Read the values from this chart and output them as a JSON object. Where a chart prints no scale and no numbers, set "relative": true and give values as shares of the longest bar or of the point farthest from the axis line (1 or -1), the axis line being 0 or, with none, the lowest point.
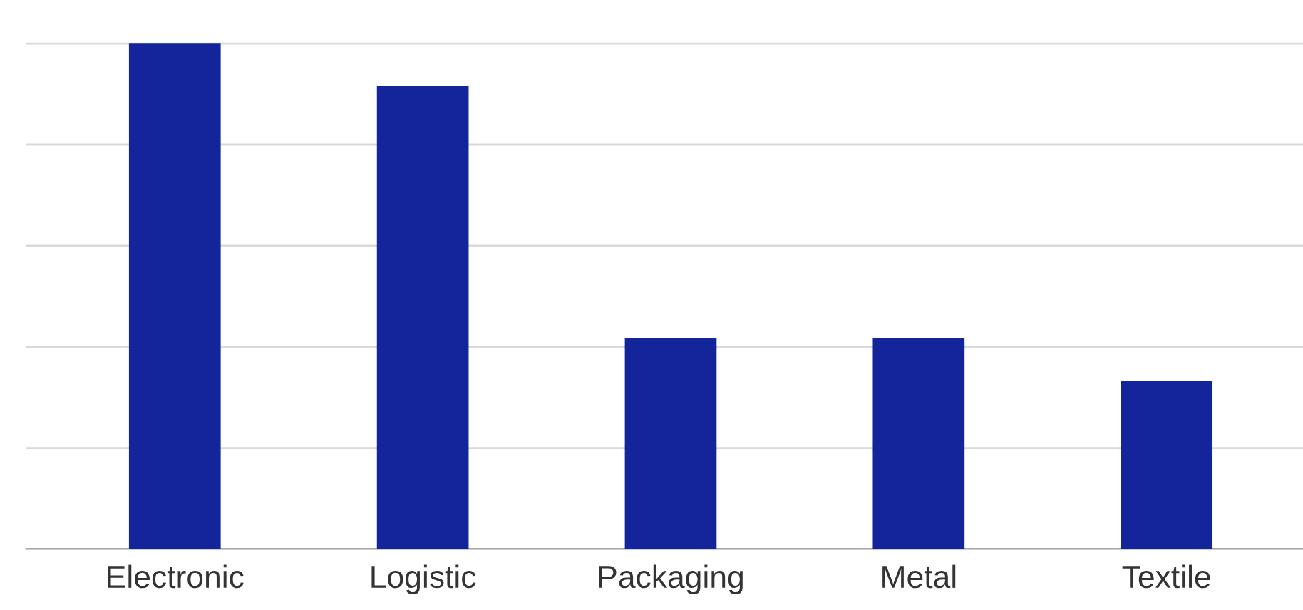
{
  "chart_data": {
    "type": "bar",
    "relative": true,
    "categories": [
      "Electronic",
      "Logistic",
      "Packaging",
      "Metal",
      "Textile"
    ],
    "values": [
      1,
      0.9167,
      0.4167,
      0.4167,
      0.3333
    ],
    "color": "#14249a",
    "grid": "y",
    "tick_labels": "x"
  }
}
